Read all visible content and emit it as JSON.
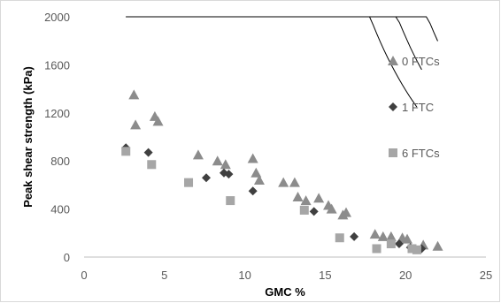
{
  "chart_data": {
    "type": "scatter",
    "title": "",
    "xlabel": "GMC %",
    "ylabel": "Peak shear strength (kPa)",
    "xlim": [
      0,
      25
    ],
    "ylim": [
      0,
      2000
    ],
    "x_ticks": [
      "0",
      "5",
      "10",
      "15",
      "20",
      "25"
    ],
    "y_ticks": [
      "0",
      "400",
      "800",
      "1200",
      "1600",
      "2000"
    ],
    "grid": false,
    "legend_position": "right",
    "series": [
      {
        "name": "0 FTCs",
        "marker": "triangle",
        "color": "#8c8c8c",
        "points": [
          [
            3.1,
            1350
          ],
          [
            3.2,
            1100
          ],
          [
            4.4,
            1170
          ],
          [
            4.6,
            1130
          ],
          [
            7.1,
            850
          ],
          [
            8.3,
            800
          ],
          [
            8.8,
            770
          ],
          [
            10.5,
            820
          ],
          [
            10.7,
            700
          ],
          [
            10.9,
            640
          ],
          [
            12.4,
            620
          ],
          [
            13.1,
            620
          ],
          [
            13.3,
            500
          ],
          [
            13.8,
            470
          ],
          [
            14.6,
            490
          ],
          [
            15.2,
            430
          ],
          [
            15.4,
            400
          ],
          [
            16.1,
            350
          ],
          [
            16.3,
            370
          ],
          [
            18.1,
            190
          ],
          [
            18.6,
            170
          ],
          [
            19.1,
            170
          ],
          [
            19.8,
            160
          ],
          [
            20.1,
            150
          ],
          [
            21.1,
            100
          ],
          [
            22.0,
            90
          ]
        ],
        "fit": {
          "a": 115000000.0,
          "b": -3.58,
          "x_range": [
            3.0,
            22.0
          ]
        }
      },
      {
        "name": "1 FTC",
        "marker": "diamond",
        "color": "#404040",
        "points": [
          [
            2.6,
            910
          ],
          [
            4.0,
            870
          ],
          [
            7.6,
            660
          ],
          [
            8.7,
            700
          ],
          [
            9.0,
            690
          ],
          [
            10.5,
            550
          ],
          [
            14.3,
            380
          ],
          [
            16.8,
            170
          ],
          [
            19.6,
            110
          ],
          [
            20.3,
            80
          ],
          [
            21.0,
            70
          ]
        ],
        "fit": {
          "a": 36000000.0,
          "b": -3.3,
          "x_range": [
            2.6,
            21.0
          ]
        }
      },
      {
        "name": "6 FTCs",
        "marker": "square",
        "color": "#a6a6a6",
        "points": [
          [
            2.6,
            880
          ],
          [
            4.2,
            770
          ],
          [
            6.5,
            620
          ],
          [
            9.1,
            470
          ],
          [
            13.7,
            390
          ],
          [
            15.9,
            160
          ],
          [
            18.2,
            70
          ],
          [
            19.1,
            110
          ],
          [
            20.4,
            70
          ],
          [
            20.7,
            60
          ]
        ],
        "fit": {
          "a": 15000000.0,
          "b": -3.1,
          "x_range": [
            2.6,
            20.7
          ]
        }
      }
    ]
  }
}
